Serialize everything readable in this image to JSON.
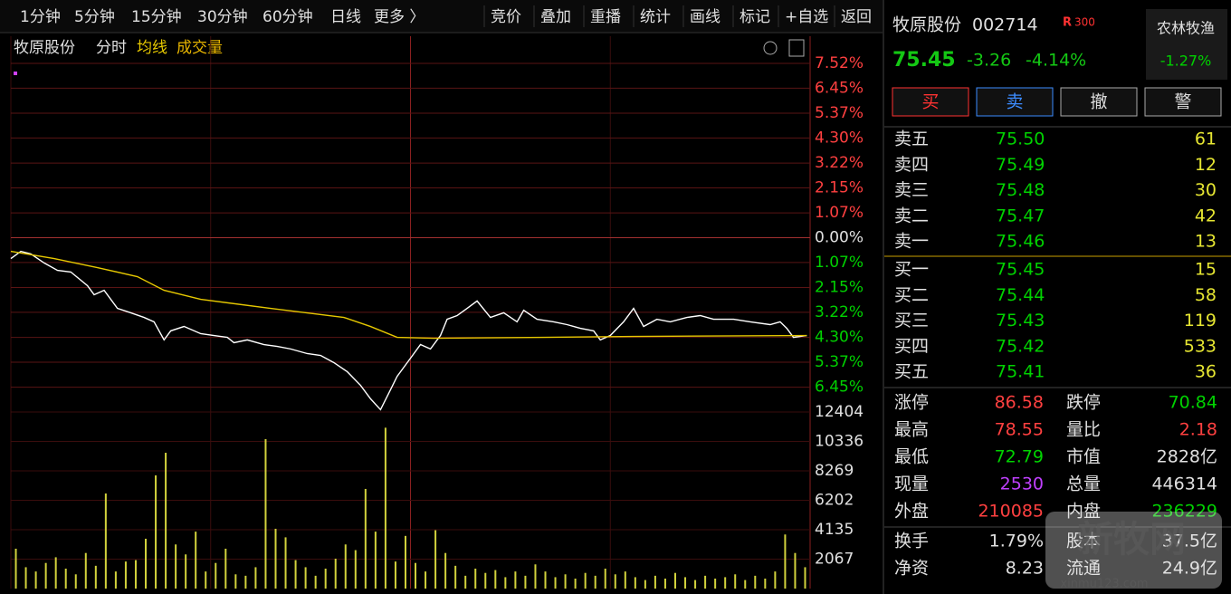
{
  "toolbar": {
    "periods": [
      "1分钟",
      "5分钟",
      "15分钟",
      "30分钟",
      "60分钟",
      "日线",
      "更多 〉"
    ],
    "tools": [
      "竞价",
      "叠加",
      "重播",
      "统计",
      "画线",
      "标记",
      "+自选",
      "返回"
    ]
  },
  "chart_header": {
    "name": "牧原股份"
  },
  "chart_data": [
    {
      "type": "line",
      "xlim": [
        0,
        240
      ],
      "ylim": [
        -7.52,
        7.52
      ],
      "yticks": [
        {
          "value": 7.52,
          "label": "7.52%"
        },
        {
          "value": 6.45,
          "label": "6.45%"
        },
        {
          "value": 5.37,
          "label": "5.37%"
        },
        {
          "value": 4.3,
          "label": "4.30%"
        },
        {
          "value": 3.22,
          "label": "3.22%"
        },
        {
          "value": 2.15,
          "label": "2.15%"
        },
        {
          "value": 1.07,
          "label": "1.07%"
        },
        {
          "value": 0,
          "label": "0.00%"
        },
        {
          "value": -1.07,
          "label": "1.07%"
        },
        {
          "value": -2.15,
          "label": "2.15%"
        },
        {
          "value": -3.22,
          "label": "3.22%"
        },
        {
          "value": -4.3,
          "label": "4.30%"
        },
        {
          "value": -5.37,
          "label": "5.37%"
        },
        {
          "value": -6.45,
          "label": "6.45%"
        }
      ],
      "series": [
        {
          "name": "分时",
          "color": "#ffffff",
          "x": [
            0,
            3,
            6,
            10,
            14,
            18,
            23,
            25,
            28,
            32,
            36,
            40,
            43,
            46,
            48,
            52,
            57,
            61,
            65,
            67,
            71,
            76,
            80,
            84,
            89,
            93,
            97,
            101,
            105,
            108,
            111,
            114,
            116,
            120,
            123,
            126,
            129,
            131,
            134,
            137,
            140,
            144,
            148,
            152,
            154,
            158,
            163,
            167,
            171,
            175,
            177,
            180,
            184,
            187,
            190,
            194,
            198,
            203,
            207,
            211,
            217,
            222,
            228,
            231,
            233,
            235,
            239
          ],
          "values": [
            -0.9,
            -0.59,
            -0.7,
            -1.09,
            -1.41,
            -1.48,
            -2.07,
            -2.46,
            -2.27,
            -3.05,
            -3.24,
            -3.44,
            -3.63,
            -4.41,
            -4.02,
            -3.83,
            -4.14,
            -4.22,
            -4.3,
            -4.53,
            -4.41,
            -4.61,
            -4.69,
            -4.8,
            -5.0,
            -5.08,
            -5.39,
            -5.78,
            -6.37,
            -6.95,
            -7.42,
            -6.56,
            -5.98,
            -5.2,
            -4.61,
            -4.8,
            -4.22,
            -3.52,
            -3.36,
            -3.05,
            -2.73,
            -3.44,
            -3.24,
            -3.63,
            -3.13,
            -3.52,
            -3.63,
            -3.75,
            -3.91,
            -4.02,
            -4.41,
            -4.22,
            -3.63,
            -3.05,
            -3.83,
            -3.52,
            -3.63,
            -3.44,
            -3.36,
            -3.52,
            -3.52,
            -3.63,
            -3.75,
            -3.63,
            -3.91,
            -4.3,
            -4.22
          ]
        },
        {
          "name": "均线",
          "color": "#e6c800",
          "x": [
            0,
            13,
            26,
            38,
            46,
            57,
            78,
            100,
            108,
            116,
            127,
            160,
            187,
            239
          ],
          "values": [
            -0.59,
            -0.9,
            -1.29,
            -1.68,
            -2.27,
            -2.66,
            -3.05,
            -3.44,
            -3.83,
            -4.3,
            -4.34,
            -4.3,
            -4.26,
            -4.22
          ]
        }
      ]
    },
    {
      "type": "bar",
      "title": "成交量",
      "color": "#d2d23c",
      "ylim": [
        0,
        12404
      ],
      "yticks": [
        12404,
        10336,
        8269,
        6202,
        4135,
        2067
      ],
      "values": [
        2800,
        1500,
        1200,
        1800,
        2200,
        1400,
        1000,
        2500,
        1600,
        6680,
        1200,
        1900,
        2000,
        3500,
        7950,
        9540,
        3100,
        2400,
        4000,
        1200,
        1800,
        2800,
        1000,
        900,
        1500,
        10500,
        4200,
        3600,
        2000,
        1500,
        900,
        1400,
        2100,
        3100,
        2700,
        7000,
        4000,
        11300,
        1900,
        3700,
        1800,
        1200,
        4100,
        2500,
        1600,
        900,
        1400,
        1100,
        1300,
        800,
        1200,
        900,
        1700,
        1200,
        800,
        1000,
        700,
        1100,
        900,
        1400,
        1000,
        1200,
        800,
        600,
        900,
        700,
        1100,
        800,
        600,
        900,
        700,
        800,
        1000,
        600,
        900,
        700,
        1200,
        3800,
        2500,
        1500
      ]
    }
  ],
  "quote": {
    "name": "牧原股份",
    "code": "002714",
    "badge_r": "R",
    "badge": "300",
    "sector": "农林牧渔",
    "sector_change": "-1.27%",
    "price": "75.45",
    "change": "-3.26",
    "change_pct": "-4.14%"
  },
  "buttons": [
    "买",
    "卖",
    "撤",
    "警"
  ],
  "asks": [
    [
      "卖五",
      "75.50",
      "61"
    ],
    [
      "卖四",
      "75.49",
      "12"
    ],
    [
      "卖三",
      "75.48",
      "30"
    ],
    [
      "卖二",
      "75.47",
      "42"
    ],
    [
      "卖一",
      "75.46",
      "13"
    ]
  ],
  "bids": [
    [
      "买一",
      "75.45",
      "15"
    ],
    [
      "买二",
      "75.44",
      "58"
    ],
    [
      "买三",
      "75.43",
      "119"
    ],
    [
      "买四",
      "75.42",
      "533"
    ],
    [
      "买五",
      "75.41",
      "36"
    ]
  ],
  "stats": [
    [
      "涨停",
      "86.58",
      "跌停",
      "70.84"
    ],
    [
      "最高",
      "78.55",
      "量比",
      "2.18"
    ],
    [
      "最低",
      "72.79",
      "市值",
      "2828亿"
    ],
    [
      "现量",
      "2530",
      "总量",
      "446314"
    ],
    [
      "外盘",
      "210085",
      "内盘",
      "236229"
    ],
    [
      "换手",
      "1.79%",
      "股本",
      "37.5亿"
    ],
    [
      "净资",
      "8.23",
      "流通",
      "24.9亿"
    ]
  ],
  "watermark": {
    "title": "新牧网",
    "url": "xinmu123.com"
  }
}
